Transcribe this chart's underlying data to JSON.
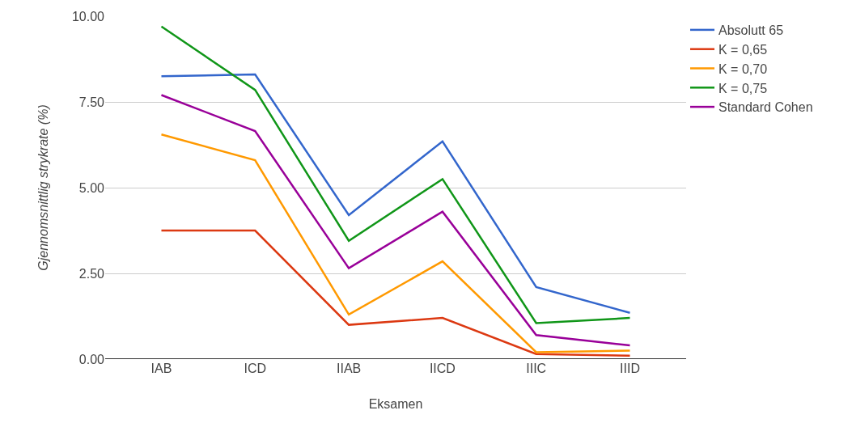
{
  "chart_data": {
    "type": "line",
    "xlabel": "Eksamen",
    "ylabel": "Gjennomsnittlig strykrate (%)",
    "categories": [
      "IAB",
      "ICD",
      "IIAB",
      "IICD",
      "IIIC",
      "IIID"
    ],
    "series": [
      {
        "name": "Absolutt 65",
        "color": "#3366cc",
        "values": [
          8.25,
          8.3,
          4.2,
          6.35,
          2.1,
          1.35
        ]
      },
      {
        "name": "K = 0,65",
        "color": "#dc3912",
        "values": [
          3.75,
          3.75,
          1.0,
          1.2,
          0.15,
          0.1
        ]
      },
      {
        "name": "K = 0,70",
        "color": "#ff9900",
        "values": [
          6.55,
          5.8,
          1.3,
          2.85,
          0.2,
          0.25
        ]
      },
      {
        "name": "K = 0,75",
        "color": "#109618",
        "values": [
          9.7,
          7.85,
          3.45,
          5.25,
          1.05,
          1.2
        ]
      },
      {
        "name": "Standard Cohen",
        "color": "#990099",
        "values": [
          7.7,
          6.65,
          2.65,
          4.3,
          0.7,
          0.4
        ]
      }
    ],
    "ylim": [
      0,
      10
    ],
    "yticks": [
      {
        "value": 0,
        "label": "0.00"
      },
      {
        "value": 2.5,
        "label": "2.50"
      },
      {
        "value": 5,
        "label": "5.00"
      },
      {
        "value": 7.5,
        "label": "7.50"
      },
      {
        "value": 10,
        "label": "10.00"
      }
    ],
    "grid": "y",
    "legend": "top right",
    "marker": "none",
    "line_style": "solid"
  }
}
